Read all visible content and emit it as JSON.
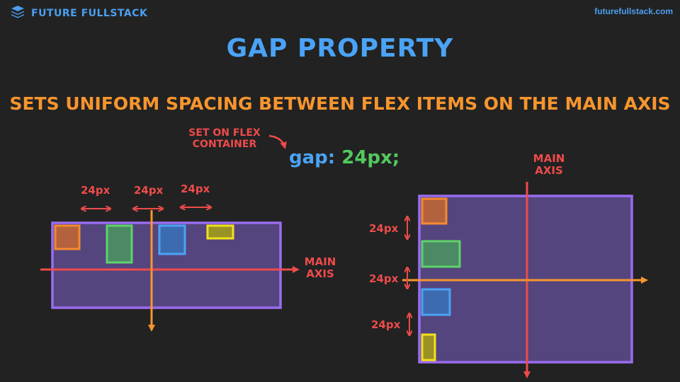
{
  "brand": {
    "name": "FUTURE FULLSTACK",
    "icon": "stack-layers-icon",
    "url": "futurefullstack.com"
  },
  "title": "GAP PROPERTY",
  "subtitle": "SETS UNIFORM SPACING BETWEEN FLEX ITEMS ON THE MAIN AXIS",
  "note": {
    "line1": "SET ON FLEX",
    "line2": "CONTAINER"
  },
  "code": {
    "property": "gap:",
    "value": "24px;"
  },
  "row_diagram": {
    "gap_labels": [
      "24px",
      "24px",
      "24px"
    ],
    "main_axis_line1": "MAIN",
    "main_axis_line2": "AXIS"
  },
  "column_diagram": {
    "gap_labels": [
      "24px",
      "24px",
      "24px"
    ],
    "main_axis_line1": "MAIN",
    "main_axis_line2": "AXIS"
  },
  "colors": {
    "background": "#222222",
    "container_fill": "#55457e",
    "container_border": "#9a6cf0",
    "item_orange": "#f58a2e",
    "item_green": "#5fd36a",
    "item_blue": "#4aa3f5",
    "item_yellow": "#f2e21c",
    "red_annotation": "#ee4b4b",
    "orange_axis": "#f7952e"
  }
}
